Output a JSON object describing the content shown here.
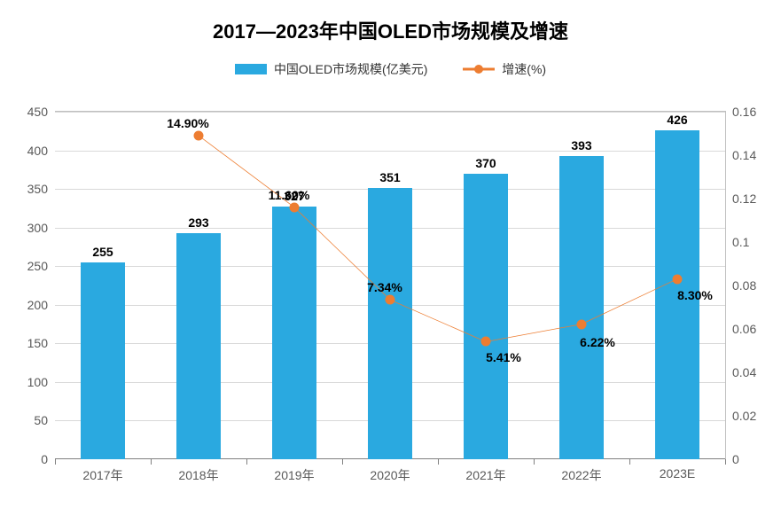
{
  "title": "2017—2023年中国OLED市场规模及增速",
  "title_fontsize": 22,
  "legend": {
    "series1": {
      "label": "中国OLED市场规模(亿美元)",
      "color": "#2aa9e0"
    },
    "series2": {
      "label": "增速(%)",
      "line_color": "#ed7d31",
      "marker_color": "#ed7d31"
    }
  },
  "chart": {
    "categories": [
      "2017年",
      "2018年",
      "2019年",
      "2020年",
      "2021年",
      "2022年",
      "2023E"
    ],
    "bars": {
      "values": [
        255,
        293,
        327,
        351,
        370,
        393,
        426
      ],
      "labels": [
        "255",
        "293",
        "327",
        "351",
        "370",
        "393",
        "426"
      ],
      "color": "#2aa9e0",
      "bar_width_frac": 0.46
    },
    "line": {
      "values": [
        null,
        0.149,
        0.116,
        0.0734,
        0.0541,
        0.0622,
        0.083
      ],
      "labels": [
        null,
        "14.90%",
        "11.60%",
        "7.34%",
        "5.41%",
        "6.22%",
        "8.30%"
      ],
      "label_dy": [
        null,
        -22,
        -22,
        -22,
        10,
        12,
        10
      ],
      "label_dx": [
        null,
        -12,
        -6,
        -6,
        20,
        18,
        20
      ],
      "color": "#ed7d31",
      "line_width": 3,
      "marker_size": 11
    },
    "y_left": {
      "min": 0,
      "max": 450,
      "step": 50
    },
    "y_right": {
      "min": 0,
      "max": 0.16,
      "step": 0.02,
      "labels": [
        "0",
        "0.02",
        "0.04",
        "0.06",
        "0.08",
        "0.1",
        "0.12",
        "0.14",
        "0.16"
      ]
    },
    "grid_color": "#d9d9d9",
    "axis_color": "#808080",
    "tick_fontsize": 14
  }
}
